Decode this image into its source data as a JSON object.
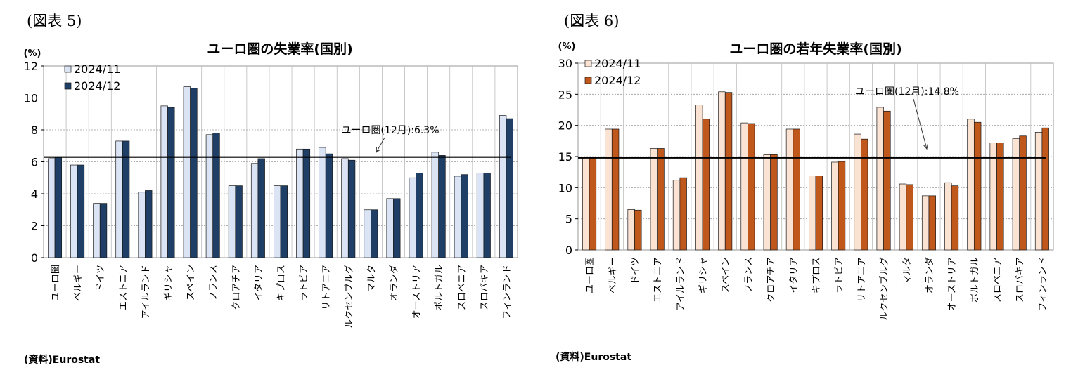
{
  "figures": [
    {
      "label": "(図表 5)",
      "source": "(資料)Eurostat",
      "chart_data": {
        "type": "bar",
        "title": "ユーロ圏の失業率(国別)",
        "unit": "(%)",
        "ylim": [
          0,
          12
        ],
        "yticks": [
          0,
          2,
          4,
          6,
          8,
          10,
          12
        ],
        "grid": true,
        "legend_position": "top-left",
        "categories": [
          "ユーロ圏",
          "ベルギー",
          "ドイツ",
          "エストニア",
          "アイルランド",
          "ギリシャ",
          "スペイン",
          "フランス",
          "クロアチア",
          "イタリア",
          "キプロス",
          "ラトビア",
          "リトアニア",
          "ルクセンブルグ",
          "マルタ",
          "オランダ",
          "オーストリア",
          "ポルトガル",
          "スロベニア",
          "スロバキア",
          "フィンランド"
        ],
        "series": [
          {
            "name": "2024/11",
            "color": "#dbe4f5",
            "values": [
              6.2,
              5.8,
              3.4,
              7.3,
              4.1,
              9.5,
              10.7,
              7.7,
              4.5,
              5.9,
              4.5,
              6.8,
              6.9,
              6.2,
              3.0,
              3.7,
              5.0,
              6.6,
              5.1,
              5.3,
              8.9
            ]
          },
          {
            "name": "2024/12",
            "color": "#1f3f66",
            "values": [
              6.3,
              5.8,
              3.4,
              7.3,
              4.2,
              9.4,
              10.6,
              7.8,
              4.5,
              6.2,
              4.5,
              6.8,
              6.5,
              6.1,
              3.0,
              3.7,
              5.3,
              6.4,
              5.2,
              5.3,
              8.7
            ]
          }
        ],
        "reference_line": {
          "value": 6.3,
          "label": "ユーロ圏(12月):6.3%"
        }
      }
    },
    {
      "label": "(図表 6)",
      "source": "(資料)Eurostat",
      "chart_data": {
        "type": "bar",
        "title": "ユーロ圏の若年失業率(国別)",
        "unit": "(%)",
        "ylim": [
          0,
          30
        ],
        "yticks": [
          0,
          5,
          10,
          15,
          20,
          25,
          30
        ],
        "grid": true,
        "legend_position": "top-left",
        "categories": [
          "ユーロ圏",
          "ベルギー",
          "ドイツ",
          "エストニア",
          "アイルランド",
          "ギリシャ",
          "スペイン",
          "フランス",
          "クロアチア",
          "イタリア",
          "キプロス",
          "ラトビア",
          "リトアニア",
          "ルクセンブルグ",
          "マルタ",
          "オランダ",
          "オーストリア",
          "ポルトガル",
          "スロベニア",
          "スロバキア",
          "フィンランド"
        ],
        "series": [
          {
            "name": "2024/11",
            "color": "#fbe3d4",
            "values": [
              14.8,
              19.4,
              6.5,
              16.3,
              11.2,
              23.3,
              25.4,
              20.4,
              15.3,
              19.4,
              11.9,
              14.1,
              18.6,
              22.9,
              10.6,
              8.7,
              10.8,
              21.0,
              17.2,
              17.9,
              18.9
            ]
          },
          {
            "name": "2024/12",
            "color": "#c0571b",
            "values": [
              14.8,
              19.4,
              6.4,
              16.3,
              11.6,
              21.0,
              25.3,
              20.3,
              15.3,
              19.4,
              11.9,
              14.2,
              17.8,
              22.3,
              10.5,
              8.7,
              10.3,
              20.5,
              17.2,
              18.3,
              19.6
            ]
          }
        ],
        "reference_line": {
          "value": 14.8,
          "label": "ユーロ圏(12月):14.8%"
        }
      }
    }
  ]
}
